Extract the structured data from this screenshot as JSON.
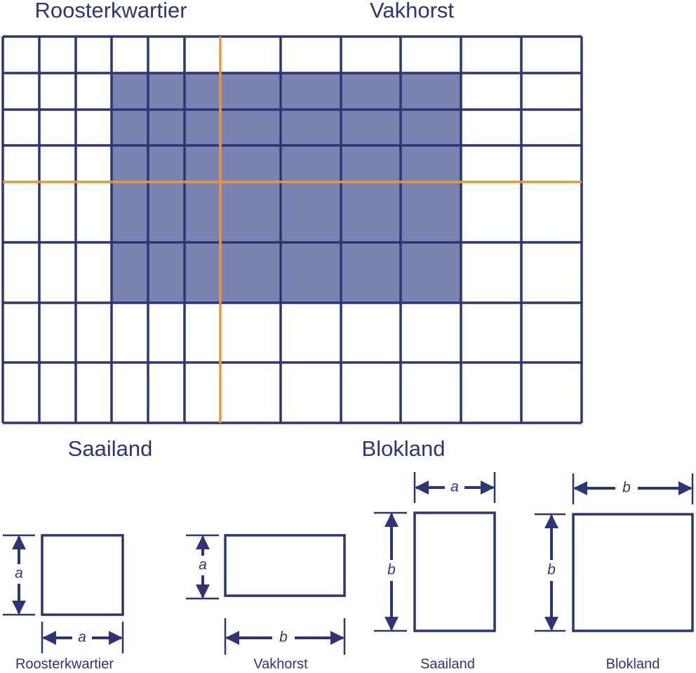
{
  "grid_labels": [
    "Roosterkwartier",
    "Vakhorst",
    "Saailand",
    "Blokland"
  ],
  "figures": [
    {
      "caption": "Roosterkwartier",
      "height_label": "a",
      "width_label": "a"
    },
    {
      "caption": "Vakhorst",
      "height_label": "a",
      "width_label": "b"
    },
    {
      "caption": "Saailand",
      "height_label": "b",
      "width_label": "a"
    },
    {
      "caption": "Blokland",
      "height_label": "b",
      "width_label": "b"
    }
  ]
}
